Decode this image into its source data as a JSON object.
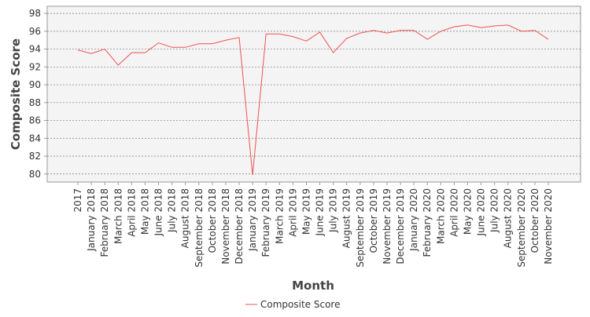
{
  "chart_data": {
    "type": "line",
    "x_label": "Month",
    "y_label": "Composite Score",
    "categories": [
      "2017",
      "January 2018",
      "February 2018",
      "March 2018",
      "April 2018",
      "May 2018",
      "June 2018",
      "July 2018",
      "August 2018",
      "September 2018",
      "October 2018",
      "November 2018",
      "December 2018",
      "January 2019",
      "February 2019",
      "March 2019",
      "April 2019",
      "May 2019",
      "June 2019",
      "July 2019",
      "August 2019",
      "September 2019",
      "October 2019",
      "November 2019",
      "December 2019",
      "January 2020",
      "February 2020",
      "March 2020",
      "April 2020",
      "May 2020",
      "June 2020",
      "July 2020",
      "August 2020",
      "September 2020",
      "October 2020",
      "November 2020"
    ],
    "series": [
      {
        "name": "Composite Score",
        "color": "#f05050",
        "values": [
          93.9,
          93.5,
          94.0,
          92.2,
          93.6,
          93.6,
          94.7,
          94.2,
          94.2,
          94.6,
          94.6,
          95.0,
          95.3,
          79.9,
          95.7,
          95.7,
          95.4,
          94.9,
          95.9,
          93.6,
          95.2,
          95.8,
          96.1,
          95.8,
          96.1,
          96.1,
          95.1,
          96.0,
          96.5,
          96.7,
          96.4,
          96.6,
          96.7,
          96.0,
          96.1,
          95.1
        ]
      }
    ],
    "ylim": [
      79.1,
      98.8
    ],
    "yticks": [
      80,
      82,
      84,
      86,
      88,
      90,
      92,
      94,
      96,
      98
    ],
    "grid": true,
    "legend": "bottom"
  }
}
